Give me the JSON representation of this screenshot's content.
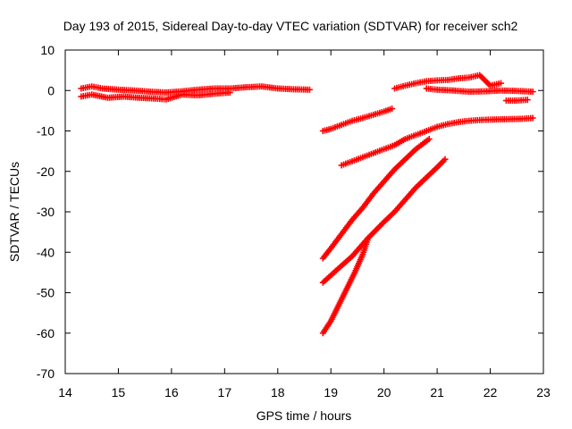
{
  "chart_data": {
    "type": "scatter",
    "title": "Day 193 of 2015, Sidereal Day-to-day VTEC variation (SDTVAR) for receiver sch2",
    "xlabel": "GPS time / hours",
    "ylabel": "SDTVAR / TECUs",
    "xlim": [
      14,
      23
    ],
    "ylim": [
      -70,
      10
    ],
    "x_ticks": [
      "14",
      "15",
      "16",
      "17",
      "18",
      "19",
      "20",
      "21",
      "22",
      "23"
    ],
    "y_ticks": [
      "10",
      "0",
      "-10",
      "-20",
      "-30",
      "-40",
      "-50",
      "-60",
      "-70"
    ],
    "grid": false,
    "marker": "+",
    "colors": {
      "series": "#ff0000",
      "axis": "#000000",
      "background": "#ffffff"
    },
    "series": [
      {
        "x": [
          14.3,
          14.5,
          14.7,
          15.0,
          15.3,
          15.6,
          15.9,
          16.2,
          16.5,
          16.8,
          17.1,
          17.4,
          17.7,
          18.0,
          18.3,
          18.6
        ],
        "values": [
          0.5,
          1.0,
          0.5,
          0.2,
          0.0,
          -0.3,
          -0.5,
          -0.2,
          0.2,
          0.5,
          0.5,
          0.8,
          1.0,
          0.5,
          0.3,
          0.2
        ]
      },
      {
        "x": [
          14.3,
          14.5,
          14.8,
          15.1,
          15.4,
          15.7,
          15.9,
          16.2,
          16.5,
          16.8,
          17.1
        ],
        "values": [
          -1.5,
          -1.0,
          -1.8,
          -1.5,
          -1.8,
          -2.0,
          -2.2,
          -1.0,
          -1.2,
          -0.8,
          -0.5
        ]
      },
      {
        "x": [
          18.85,
          19.0,
          19.2,
          19.4,
          19.6,
          19.8,
          20.0,
          20.15
        ],
        "values": [
          -10.0,
          -9.5,
          -8.5,
          -7.5,
          -6.8,
          -6.0,
          -5.2,
          -4.5
        ]
      },
      {
        "x": [
          20.2,
          20.4,
          20.6,
          20.8,
          21.0,
          21.2,
          21.4,
          21.6,
          21.8,
          22.0,
          22.2
        ],
        "values": [
          0.5,
          1.2,
          1.8,
          2.3,
          2.5,
          2.6,
          3.0,
          3.2,
          3.8,
          1.2,
          1.8
        ]
      },
      {
        "x": [
          20.8,
          21.0,
          21.3,
          21.6,
          21.9,
          22.2,
          22.5,
          22.8
        ],
        "values": [
          0.5,
          0.2,
          0.0,
          -0.3,
          -0.2,
          0.0,
          -0.1,
          -0.3
        ]
      },
      {
        "x": [
          22.3,
          22.5,
          22.7
        ],
        "values": [
          -2.5,
          -2.5,
          -2.3
        ]
      },
      {
        "x": [
          19.2,
          19.4,
          19.6,
          19.8,
          20.0,
          20.2,
          20.4,
          20.6,
          20.8,
          21.0,
          21.2,
          21.4,
          21.6,
          21.8,
          22.0,
          22.3,
          22.6,
          22.8
        ],
        "values": [
          -18.5,
          -17.5,
          -16.5,
          -15.5,
          -14.5,
          -13.5,
          -12.0,
          -11.0,
          -10.0,
          -9.0,
          -8.3,
          -7.8,
          -7.5,
          -7.3,
          -7.2,
          -7.1,
          -7.0,
          -6.8
        ]
      },
      {
        "x": [
          18.85,
          19.0,
          19.2,
          19.4,
          19.6,
          19.8,
          20.0,
          20.2,
          20.4,
          20.6,
          20.85
        ],
        "values": [
          -41.5,
          -39.0,
          -35.5,
          -32.0,
          -29.0,
          -25.5,
          -22.5,
          -19.5,
          -17.0,
          -14.5,
          -12.0
        ]
      },
      {
        "x": [
          18.85,
          19.1,
          19.4,
          19.7,
          20.0,
          20.2,
          20.4,
          20.6,
          20.8,
          21.0,
          21.15
        ],
        "values": [
          -47.5,
          -44.5,
          -41.0,
          -36.5,
          -32.5,
          -30.0,
          -27.0,
          -24.0,
          -21.5,
          -19.0,
          -17.0
        ]
      },
      {
        "x": [
          18.85,
          19.0,
          19.15,
          19.3,
          19.45,
          19.6,
          19.7
        ],
        "values": [
          -60.0,
          -57.0,
          -53.0,
          -49.0,
          -45.0,
          -40.5,
          -36.5
        ]
      }
    ]
  }
}
